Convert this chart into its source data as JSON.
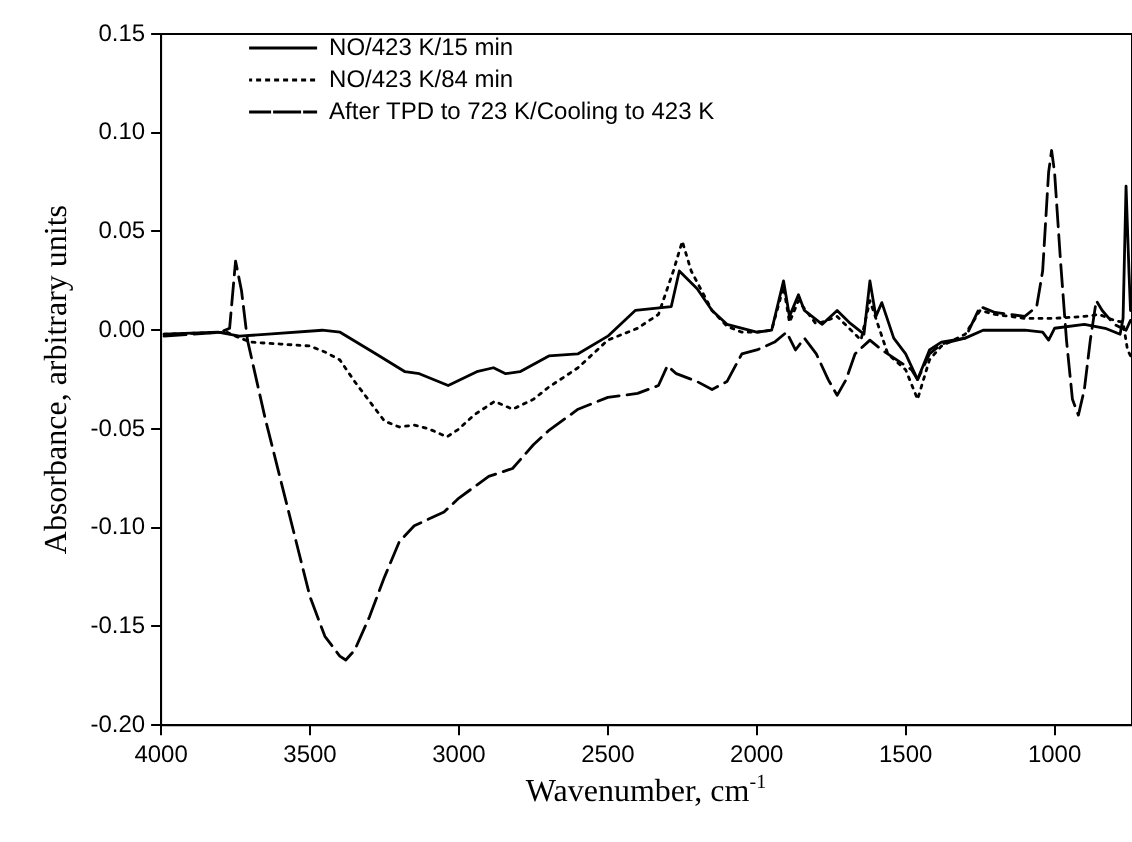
{
  "chart_data": {
    "type": "line",
    "xlabel": "Wavenumber, cm$^{-1}$",
    "ylabel": "Absorbance, arbitrary units",
    "xlim": [
      4000,
      740
    ],
    "xticks": [
      4000,
      3500,
      3000,
      2500,
      2000,
      1500,
      1000
    ],
    "ylim": [
      -0.2,
      0.15
    ],
    "yticks": [
      {
        "value": -0.2,
        "label": "-0.20"
      },
      {
        "value": -0.15,
        "label": "-0.15"
      },
      {
        "value": -0.1,
        "label": "-0.10"
      },
      {
        "value": -0.05,
        "label": "-0.05"
      },
      {
        "value": 0,
        "label": "0.00"
      },
      {
        "value": 0.05,
        "label": "0.05"
      },
      {
        "value": 0.1,
        "label": "0.10"
      },
      {
        "value": 0.15,
        "label": "0.15"
      }
    ],
    "grid": false,
    "legend": "top left",
    "marker": "none",
    "series": [
      {
        "name": "NO/423 K/15 min",
        "color": "#000000",
        "line_style": "solid",
        "x": [
          3990,
          3809,
          3737,
          3640,
          3459,
          3399,
          3278,
          3181,
          3133,
          3036,
          2940,
          2884,
          2843,
          2795,
          2698,
          2601,
          2500,
          2408,
          2287,
          2260,
          2200,
          2150,
          2100,
          2000,
          1950,
          1910,
          1890,
          1860,
          1840,
          1780,
          1730,
          1690,
          1640,
          1620,
          1600,
          1580,
          1540,
          1500,
          1460,
          1420,
          1380,
          1300,
          1240,
          1100,
          1040,
          1020,
          1000,
          900,
          830,
          780,
          770,
          760,
          750,
          745
        ],
        "values": [
          -0.002,
          -0.001,
          -0.003,
          -0.002,
          0.0,
          -0.001,
          -0.012,
          -0.021,
          -0.022,
          -0.028,
          -0.021,
          -0.019,
          -0.022,
          -0.021,
          -0.013,
          -0.012,
          -0.003,
          0.01,
          0.012,
          0.03,
          0.021,
          0.01,
          0.003,
          -0.001,
          0.0,
          0.025,
          0.007,
          0.018,
          0.01,
          0.003,
          0.01,
          0.004,
          -0.002,
          0.025,
          0.007,
          0.014,
          -0.004,
          -0.012,
          -0.025,
          -0.01,
          -0.006,
          -0.004,
          0.0,
          0.0,
          -0.001,
          -0.005,
          0.001,
          0.003,
          0.001,
          -0.002,
          0.006,
          0.073,
          0.029,
          0.01
        ]
      },
      {
        "name": "NO/423 K/84 min",
        "color": "#000000",
        "line_style": "dotted",
        "x": [
          3990,
          3780,
          3750,
          3700,
          3600,
          3500,
          3450,
          3400,
          3350,
          3300,
          3250,
          3200,
          3150,
          3100,
          3040,
          3000,
          2950,
          2880,
          2820,
          2750,
          2700,
          2600,
          2500,
          2400,
          2330,
          2280,
          2250,
          2220,
          2150,
          2100,
          2050,
          2000,
          1950,
          1910,
          1890,
          1860,
          1800,
          1730,
          1650,
          1620,
          1560,
          1500,
          1460,
          1420,
          1380,
          1300,
          1250,
          1200,
          1100,
          1000,
          900,
          850,
          800,
          770,
          755,
          745
        ],
        "values": [
          -0.002,
          -0.001,
          -0.003,
          -0.006,
          -0.007,
          -0.008,
          -0.011,
          -0.015,
          -0.026,
          -0.036,
          -0.046,
          -0.049,
          -0.048,
          -0.05,
          -0.054,
          -0.05,
          -0.043,
          -0.036,
          -0.04,
          -0.035,
          -0.029,
          -0.019,
          -0.005,
          0.001,
          0.008,
          0.03,
          0.045,
          0.03,
          0.01,
          0.002,
          -0.001,
          -0.001,
          0.0,
          0.022,
          0.004,
          0.015,
          0.003,
          0.007,
          -0.005,
          0.015,
          -0.012,
          -0.02,
          -0.035,
          -0.015,
          -0.008,
          -0.002,
          0.01,
          0.008,
          0.006,
          0.006,
          0.007,
          0.008,
          0.005,
          0.004,
          -0.01,
          -0.013
        ]
      },
      {
        "name": "After TPD to 723 K/Cooling to 423 K",
        "color": "#000000",
        "line_style": "dashed",
        "x": [
          3990,
          3800,
          3770,
          3750,
          3730,
          3710,
          3680,
          3650,
          3600,
          3550,
          3500,
          3450,
          3400,
          3380,
          3350,
          3300,
          3250,
          3200,
          3150,
          3050,
          3000,
          2900,
          2820,
          2750,
          2700,
          2600,
          2500,
          2400,
          2330,
          2300,
          2270,
          2200,
          2150,
          2100,
          2050,
          2000,
          1940,
          1900,
          1870,
          1840,
          1800,
          1760,
          1730,
          1700,
          1670,
          1620,
          1580,
          1530,
          1480,
          1460,
          1420,
          1380,
          1300,
          1250,
          1200,
          1100,
          1060,
          1040,
          1020,
          1010,
          1000,
          980,
          960,
          940,
          920,
          900,
          880,
          860,
          840,
          800,
          760,
          745
        ],
        "values": [
          -0.003,
          -0.001,
          0.001,
          0.035,
          0.02,
          -0.005,
          -0.025,
          -0.045,
          -0.075,
          -0.105,
          -0.135,
          -0.155,
          -0.165,
          -0.167,
          -0.162,
          -0.145,
          -0.125,
          -0.107,
          -0.099,
          -0.092,
          -0.085,
          -0.074,
          -0.07,
          -0.058,
          -0.051,
          -0.04,
          -0.034,
          -0.032,
          -0.028,
          -0.018,
          -0.022,
          -0.026,
          -0.03,
          -0.026,
          -0.012,
          -0.01,
          -0.006,
          -0.001,
          -0.01,
          -0.004,
          -0.012,
          -0.025,
          -0.033,
          -0.025,
          -0.012,
          -0.005,
          -0.01,
          -0.015,
          -0.02,
          -0.025,
          -0.012,
          -0.007,
          -0.004,
          0.012,
          0.009,
          0.007,
          0.012,
          0.03,
          0.08,
          0.091,
          0.08,
          0.035,
          -0.005,
          -0.035,
          -0.043,
          -0.03,
          -0.005,
          0.015,
          0.01,
          0.003,
          0.0,
          0.005
        ]
      }
    ]
  }
}
